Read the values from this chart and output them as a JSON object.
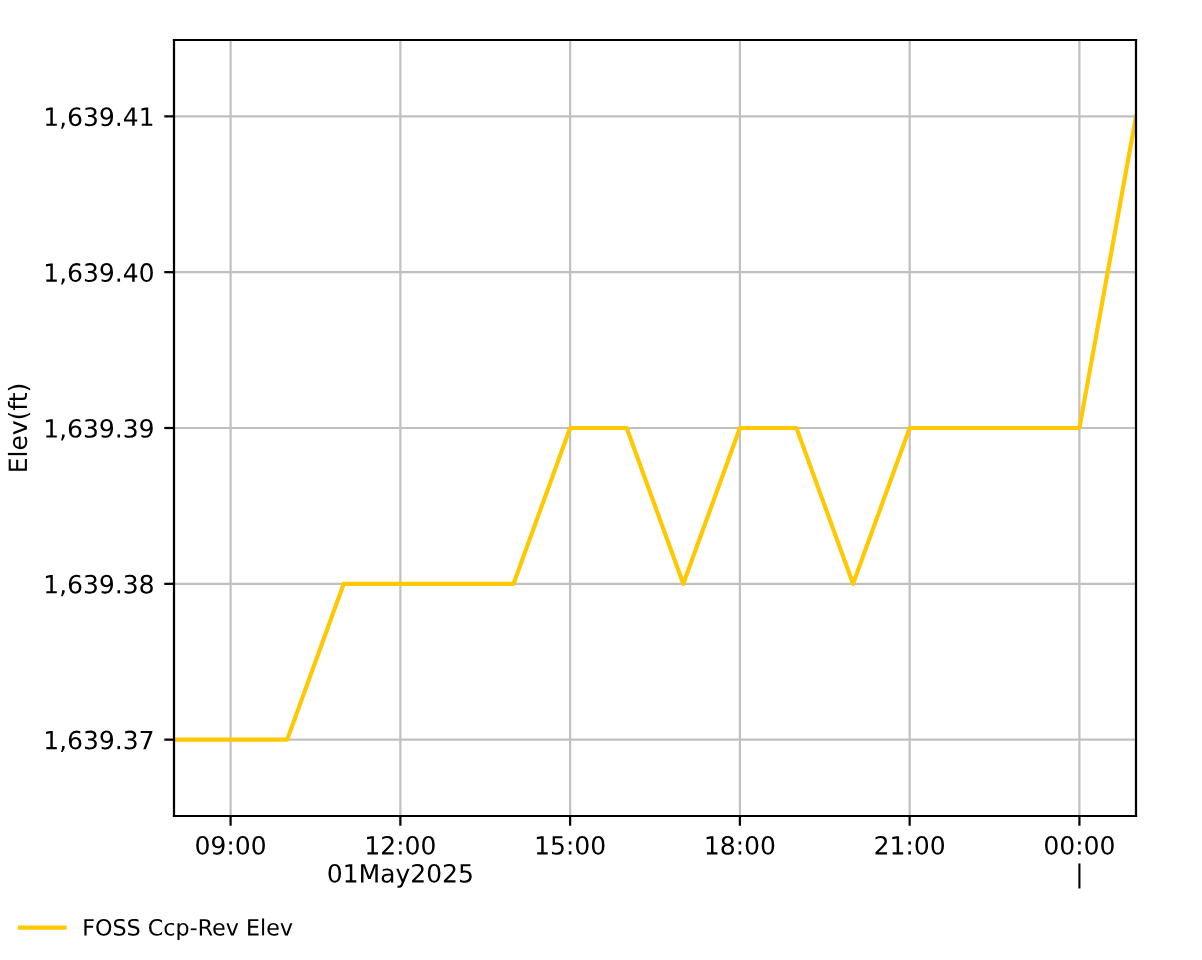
{
  "chart_data": {
    "type": "line",
    "ylabel": "Elev(ft)",
    "series": [
      {
        "name": "FOSS Ccp-Rev Elev",
        "color": "#ffc800",
        "x": [
          "2025-05-01T08:00",
          "2025-05-01T10:00",
          "2025-05-01T11:00",
          "2025-05-01T14:00",
          "2025-05-01T15:00",
          "2025-05-01T16:00",
          "2025-05-01T17:00",
          "2025-05-01T18:00",
          "2025-05-01T19:00",
          "2025-05-01T20:00",
          "2025-05-01T21:00",
          "2025-05-02T00:00",
          "2025-05-02T01:00"
        ],
        "values": [
          1639.37,
          1639.37,
          1639.38,
          1639.38,
          1639.39,
          1639.39,
          1639.38,
          1639.39,
          1639.39,
          1639.38,
          1639.39,
          1639.39,
          1639.41
        ]
      }
    ],
    "xlim": [
      "2025-05-01T08:00",
      "2025-05-02T01:00"
    ],
    "xticks": [
      {
        "value": "2025-05-01T09:00",
        "label": "09:00"
      },
      {
        "value": "2025-05-01T12:00",
        "label": "12:00\n01May2025"
      },
      {
        "value": "2025-05-01T15:00",
        "label": "15:00"
      },
      {
        "value": "2025-05-01T18:00",
        "label": "18:00"
      },
      {
        "value": "2025-05-01T21:00",
        "label": "21:00"
      },
      {
        "value": "2025-05-02T00:00",
        "label": "00:00\n|"
      }
    ],
    "ylim": [
      1639.3651,
      1639.4149
    ],
    "yticks": [
      {
        "value": 1639.37,
        "label": "1,639.37"
      },
      {
        "value": 1639.38,
        "label": "1,639.38"
      },
      {
        "value": 1639.39,
        "label": "1,639.39"
      },
      {
        "value": 1639.4,
        "label": "1,639.40"
      },
      {
        "value": 1639.41,
        "label": "1,639.41"
      }
    ],
    "grid": true,
    "legend": "bottom left",
    "marker": "none",
    "line_style": "solid"
  }
}
